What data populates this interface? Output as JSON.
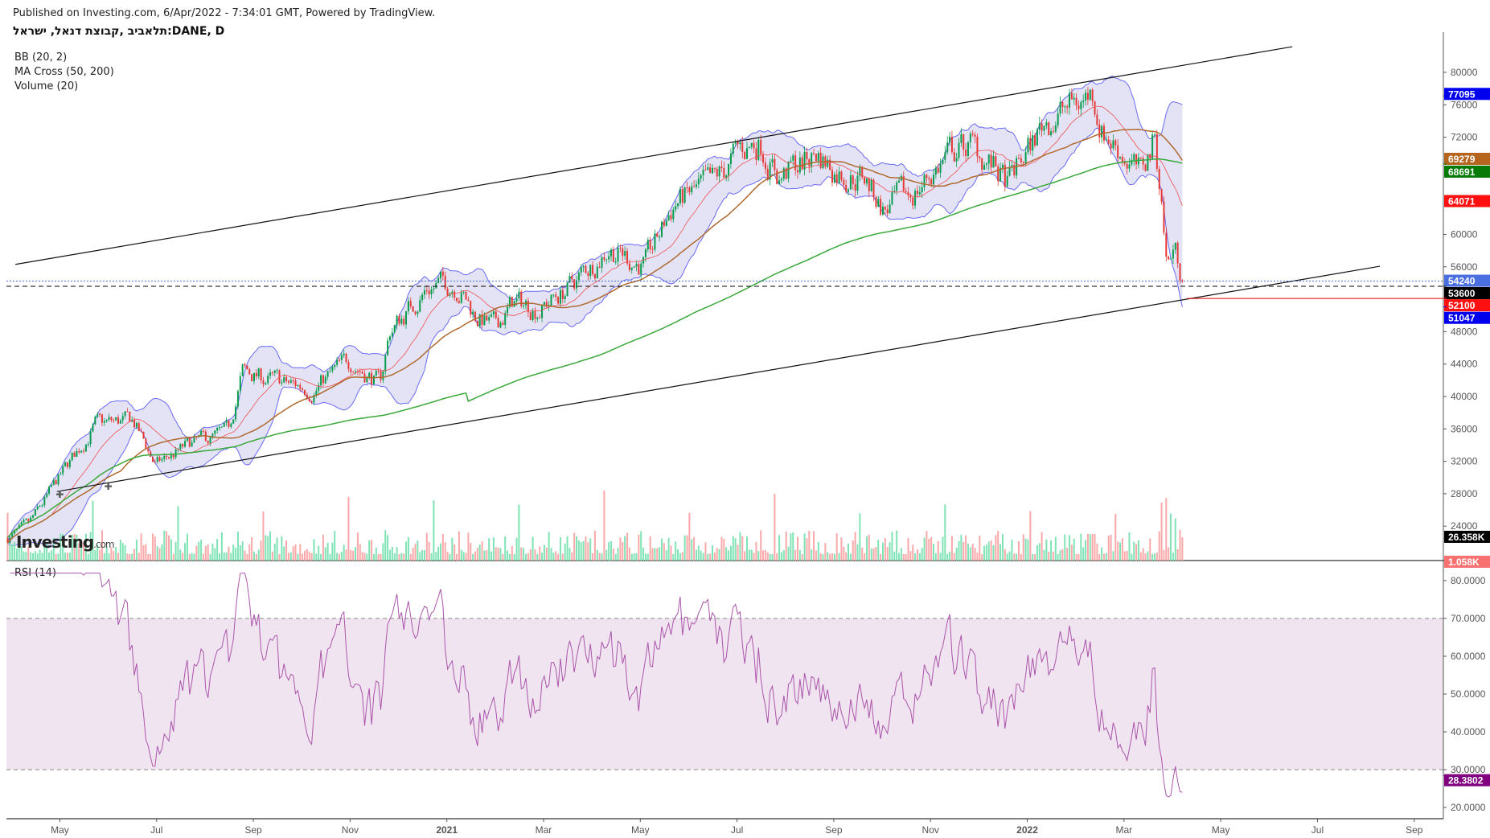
{
  "header": {
    "published": "Published on Investing.com, 6/Apr/2022 - 7:34:01 GMT, Powered by TradingView.",
    "symbol": "תלאביב ,קבוצת דנאל, ישראל:DANE, D"
  },
  "indicators": [
    "BB (20, 2)",
    "MA Cross (50, 200)",
    "Volume (20)"
  ],
  "rsi_label": "RSI (14)",
  "logo": {
    "text": "Investing",
    "suffix": ".com"
  },
  "colors": {
    "up": "#089c4c",
    "down": "#e53935",
    "vol_up": "#7fe3b5",
    "vol_down": "#f9a9a9",
    "bb": "#6a6af5",
    "bb_fill": "#dcdcf2",
    "bb_mid": "#f05050",
    "ma50": "#b06a30",
    "ma200": "#3aa83a",
    "rsi": "#aa55aa",
    "rsi_fill": "#f1e4f1"
  },
  "chart_data": {
    "type": "candlestick",
    "x_unit": "months since Apr 2020 (May 2020 = 1)",
    "x_ticks": [
      {
        "m": 1,
        "label": "May"
      },
      {
        "m": 3,
        "label": "Jul"
      },
      {
        "m": 5,
        "label": "Sep"
      },
      {
        "m": 7,
        "label": "Nov"
      },
      {
        "m": 9,
        "label": "2021"
      },
      {
        "m": 11,
        "label": "Mar"
      },
      {
        "m": 13,
        "label": "May"
      },
      {
        "m": 15,
        "label": "Jul"
      },
      {
        "m": 17,
        "label": "Sep"
      },
      {
        "m": 19,
        "label": "Nov"
      },
      {
        "m": 21,
        "label": "2022"
      },
      {
        "m": 23,
        "label": "Mar"
      },
      {
        "m": 25,
        "label": "May"
      },
      {
        "m": 27,
        "label": "Jul"
      },
      {
        "m": 29,
        "label": "Sep"
      }
    ],
    "price_ticks": [
      24000,
      28000,
      32000,
      36000,
      40000,
      44000,
      48000,
      56000,
      60000,
      72000,
      76000,
      80000
    ],
    "price_ticks_hidden_by_tags": [
      52000,
      64000,
      68000
    ],
    "rsi_ticks": [
      20,
      30,
      40,
      50,
      60,
      70,
      80
    ],
    "price_path": [
      [
        -0.08,
        22500
      ],
      [
        0.35,
        24000
      ],
      [
        1,
        30000
      ],
      [
        1.73,
        36500
      ],
      [
        2.51,
        37000
      ],
      [
        2.98,
        31500
      ],
      [
        3.69,
        34000
      ],
      [
        4.48,
        35500
      ],
      [
        4.77,
        43000
      ],
      [
        5.66,
        41500
      ],
      [
        6.25,
        41000
      ],
      [
        7.01,
        44500
      ],
      [
        7.62,
        41500
      ],
      [
        7.82,
        48000
      ],
      [
        8.6,
        53500
      ],
      [
        9.19,
        54000
      ],
      [
        9.59,
        50000
      ],
      [
        9.98,
        48500
      ],
      [
        10.37,
        51500
      ],
      [
        10.96,
        51000
      ],
      [
        11.55,
        53500
      ],
      [
        12.34,
        58500
      ],
      [
        13.1,
        56000
      ],
      [
        13.71,
        64000
      ],
      [
        14.5,
        66000
      ],
      [
        15.09,
        70500
      ],
      [
        15.48,
        71500
      ],
      [
        15.87,
        67000
      ],
      [
        16.66,
        70000
      ],
      [
        17.05,
        68000
      ],
      [
        17.64,
        67000
      ],
      [
        18.03,
        63000
      ],
      [
        18.62,
        65000
      ],
      [
        19.41,
        70000
      ],
      [
        19.8,
        71000
      ],
      [
        20.19,
        69000
      ],
      [
        20.59,
        66000
      ],
      [
        20.98,
        70000
      ],
      [
        21.37,
        74000
      ],
      [
        21.96,
        76000
      ],
      [
        22.36,
        77500
      ],
      [
        22.55,
        73000
      ],
      [
        23.14,
        69000
      ],
      [
        23.34,
        67000
      ],
      [
        23.63,
        72000
      ],
      [
        23.77,
        65000
      ],
      [
        23.89,
        56000
      ],
      [
        24.03,
        58500
      ],
      [
        24.24,
        54240
      ]
    ],
    "trendlines": [
      {
        "name": "upper-channel",
        "from": [
          0.08,
          56300
        ],
        "to": [
          26.48,
          83170
        ]
      },
      {
        "name": "lower-channel",
        "from": [
          0.94,
          28270
        ],
        "to": [
          28.29,
          56070
        ]
      }
    ],
    "horizontal_lines": [
      {
        "price": 54240,
        "style": "dotted",
        "color": "#4a6fd8"
      },
      {
        "price": 53600,
        "style": "dashed",
        "color": "#000000"
      },
      {
        "price": 52100,
        "style": "solid",
        "color": "#e00000",
        "from_m": 24.3
      }
    ],
    "price_tags": [
      {
        "value": "77095",
        "price": 77095,
        "color": "#0000ee"
      },
      {
        "value": "69279",
        "price": 69279,
        "color": "#b5651d"
      },
      {
        "value": "68691",
        "price": 68691,
        "color": "#087a08"
      },
      {
        "value": "64071",
        "price": 64071,
        "color": "#ff1010"
      },
      {
        "value": "54240",
        "price": 54240,
        "color": "#4a6fe0"
      },
      {
        "value": "53600",
        "price": 53600,
        "color": "#000000"
      },
      {
        "value": "52100",
        "price": 52100,
        "color": "#ff1010"
      },
      {
        "value": "51047",
        "price": 51047,
        "color": "#0000ee"
      }
    ],
    "volume_tags": [
      {
        "value": "26.358K",
        "color": "#000000"
      },
      {
        "value": "1.058K",
        "color": "#f87171"
      }
    ],
    "rsi_last": {
      "value": "28.3802",
      "color": "#800080"
    },
    "rsi_bands": [
      30,
      70
    ]
  }
}
